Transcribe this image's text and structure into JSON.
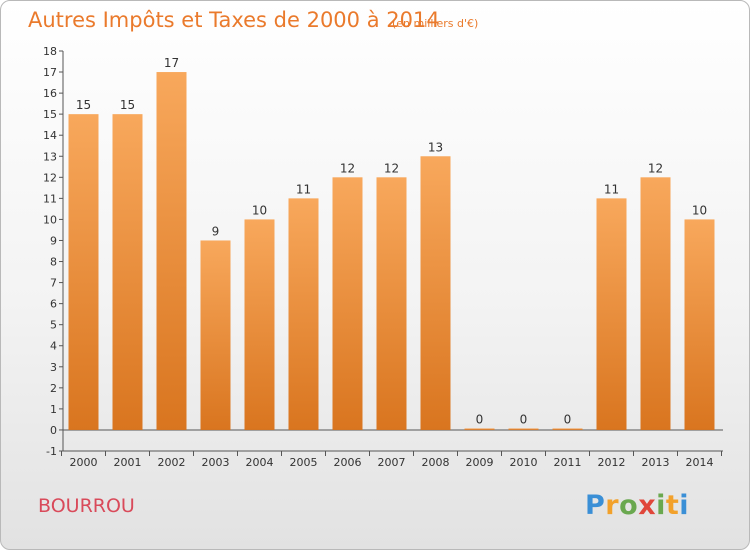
{
  "header": {
    "title": "Autres Impôts et Taxes de 2000 à 2014",
    "subtitle": "(en milliers d'€)"
  },
  "footer": {
    "town": "BOURROU",
    "logo_letters": [
      {
        "char": "P",
        "color": "#3a8fd6"
      },
      {
        "char": "r",
        "color": "#f2a12b"
      },
      {
        "char": "o",
        "color": "#6aa84f"
      },
      {
        "char": "x",
        "color": "#e0463a"
      },
      {
        "char": "i",
        "color": "#6aa84f"
      },
      {
        "char": "t",
        "color": "#f2a12b"
      },
      {
        "char": "i",
        "color": "#3a8fd6"
      }
    ]
  },
  "colors": {
    "bar_top": "#f8a85c",
    "bar_bottom": "#d9751f",
    "title": "#ea7a2c",
    "town": "#d94a5a"
  },
  "chart_data": {
    "type": "bar",
    "title": "Autres Impôts et Taxes de 2000 à 2014",
    "subtitle": "(en milliers d'€)",
    "categories": [
      "2000",
      "2001",
      "2002",
      "2003",
      "2004",
      "2005",
      "2006",
      "2007",
      "2008",
      "2009",
      "2010",
      "2011",
      "2012",
      "2013",
      "2014"
    ],
    "values": [
      15,
      15,
      17,
      9,
      10,
      11,
      12,
      12,
      13,
      0,
      0,
      0,
      11,
      12,
      10
    ],
    "ylim": [
      -1,
      18
    ],
    "yticks": [
      -1,
      0,
      1,
      2,
      3,
      4,
      5,
      6,
      7,
      8,
      9,
      10,
      11,
      12,
      13,
      14,
      15,
      16,
      17,
      18
    ],
    "grid": false,
    "legend": "none"
  }
}
